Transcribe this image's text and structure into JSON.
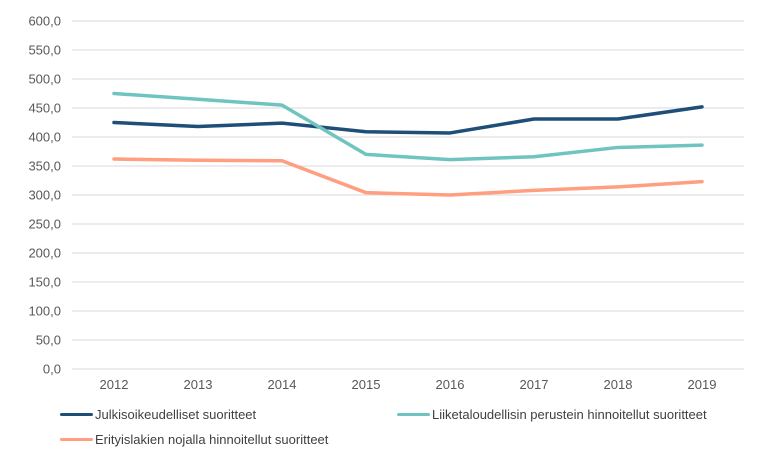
{
  "chart_data": {
    "type": "line",
    "title": "",
    "xlabel": "",
    "ylabel": "",
    "x": [
      "2012",
      "2013",
      "2014",
      "2015",
      "2016",
      "2017",
      "2018",
      "2019"
    ],
    "ylim": [
      0,
      600
    ],
    "yticks": [
      0,
      50,
      100,
      150,
      200,
      250,
      300,
      350,
      400,
      450,
      500,
      550,
      600
    ],
    "ytick_labels": [
      "0,0",
      "50,0",
      "100,0",
      "150,0",
      "200,0",
      "250,0",
      "300,0",
      "350,0",
      "400,0",
      "450,0",
      "500,0",
      "550,0",
      "600,0"
    ],
    "grid": true,
    "legend_position": "bottom",
    "series": [
      {
        "name": "Julkisoikeudelliset suoritteet",
        "color": "#1F4E79",
        "values": [
          425,
          418,
          424,
          409,
          407,
          431,
          431,
          452
        ]
      },
      {
        "name": "Liiketaloudellisin perustein hinnoitellut suoritteet",
        "color": "#70C4C0",
        "values": [
          475,
          465,
          455,
          370,
          361,
          366,
          382,
          386
        ]
      },
      {
        "name": "Erityislakien nojalla hinnoitellut suoritteet",
        "color": "#FF9E80",
        "values": [
          362,
          360,
          359,
          304,
          300,
          308,
          314,
          323
        ]
      }
    ]
  }
}
